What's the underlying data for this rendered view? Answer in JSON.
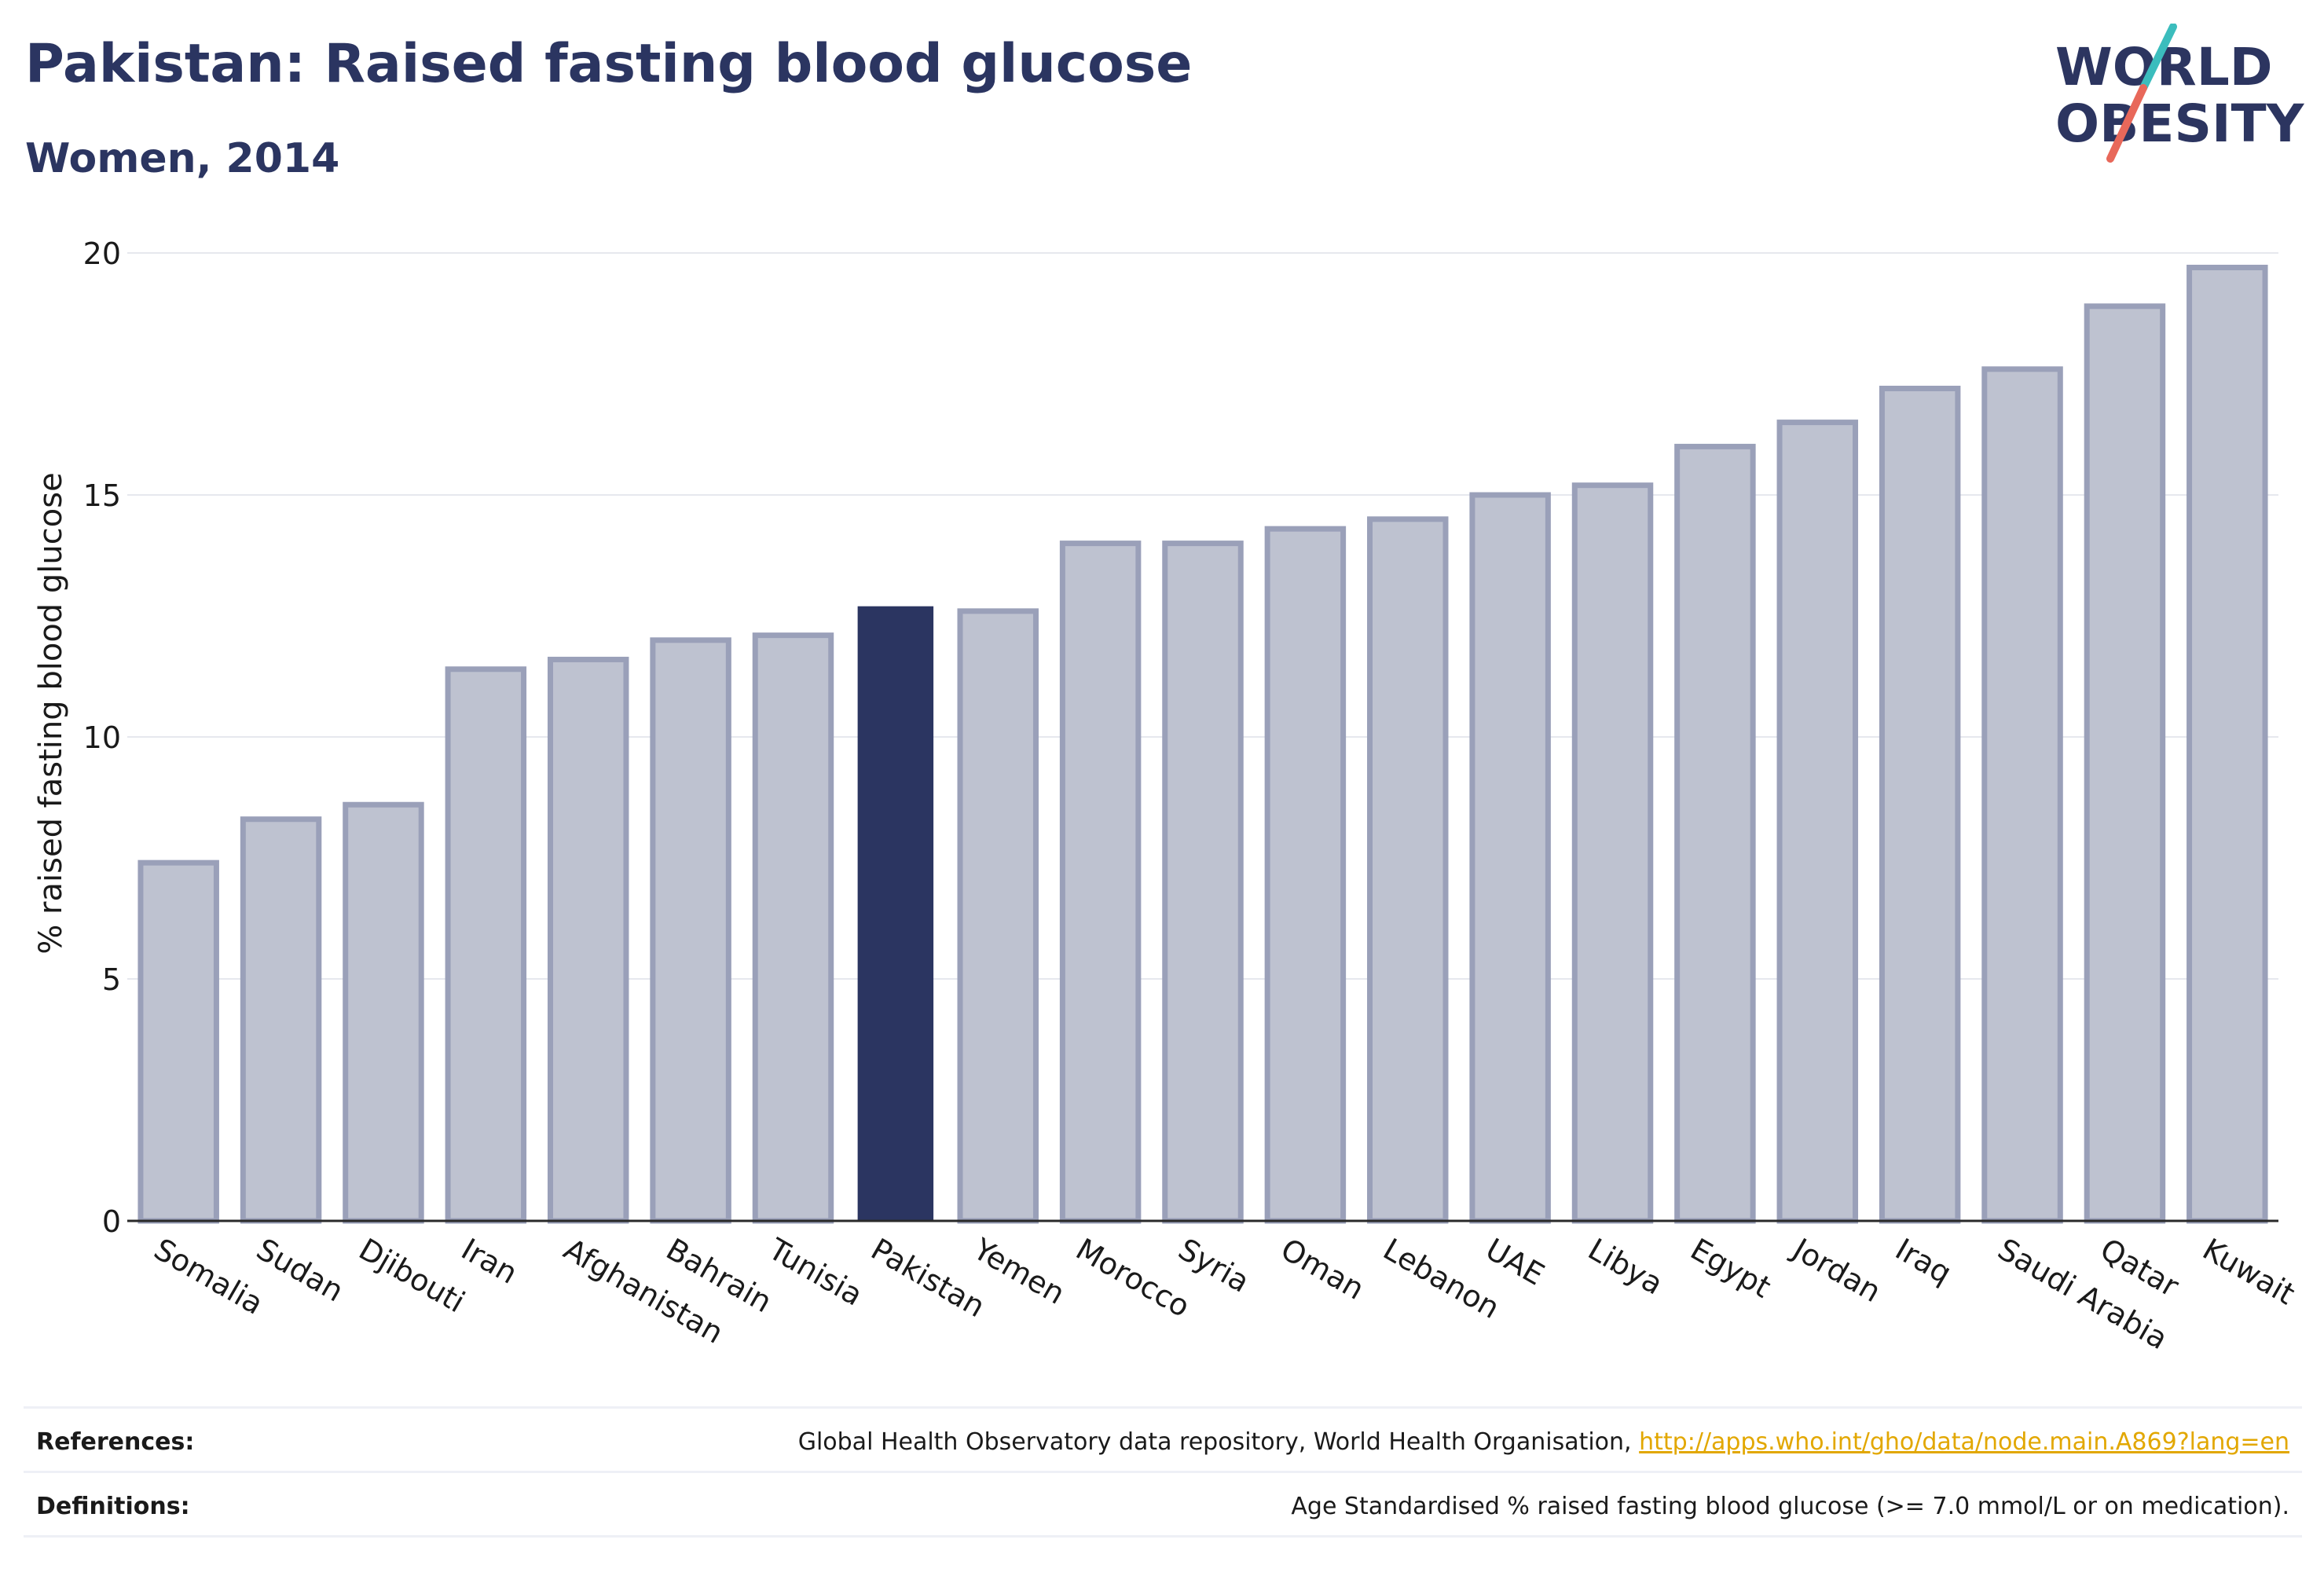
{
  "header": {
    "title": "Pakistan: Raised fasting blood glucose",
    "subtitle": "Women, 2014"
  },
  "logo": {
    "line1": "WORLD",
    "line2": "OBESITY",
    "text_color": "#2c3560",
    "slash_top_color": "#3bbdbd",
    "slash_bottom_color": "#e8685a"
  },
  "chart_data": {
    "type": "bar",
    "ylabel": "% raised fasting blood glucose",
    "ylim": [
      0,
      20
    ],
    "yticks": [
      0,
      5,
      10,
      15,
      20
    ],
    "grid": true,
    "highlight": "Pakistan",
    "colors": {
      "bar_fill": "#bec2d0",
      "bar_stroke": "#9aa0b9",
      "highlight_fill": "#2b3561",
      "grid": "#e6e8ee",
      "axis": "#2a2a2a"
    },
    "categories": [
      "Somalia",
      "Sudan",
      "Djibouti",
      "Iran",
      "Afghanistan",
      "Bahrain",
      "Tunisia",
      "Pakistan",
      "Yemen",
      "Morocco",
      "Syria",
      "Oman",
      "Lebanon",
      "UAE",
      "Libya",
      "Egypt",
      "Jordan",
      "Iraq",
      "Saudi Arabia",
      "Qatar",
      "Kuwait"
    ],
    "values": [
      7.4,
      8.3,
      8.6,
      11.4,
      11.6,
      12.0,
      12.1,
      12.7,
      12.6,
      14.0,
      14.0,
      14.3,
      14.5,
      15.0,
      15.2,
      16.0,
      16.5,
      17.2,
      17.6,
      18.9,
      19.7
    ]
  },
  "footer": {
    "references_label": "References:",
    "references_text": "Global Health Observatory data repository, World Health Organisation,",
    "references_link": "http://apps.who.int/gho/data/node.main.A869?lang=en",
    "definitions_label": "Definitions:",
    "definitions_text": "Age Standardised % raised fasting blood glucose (>= 7.0 mmol/L or on medication)."
  }
}
